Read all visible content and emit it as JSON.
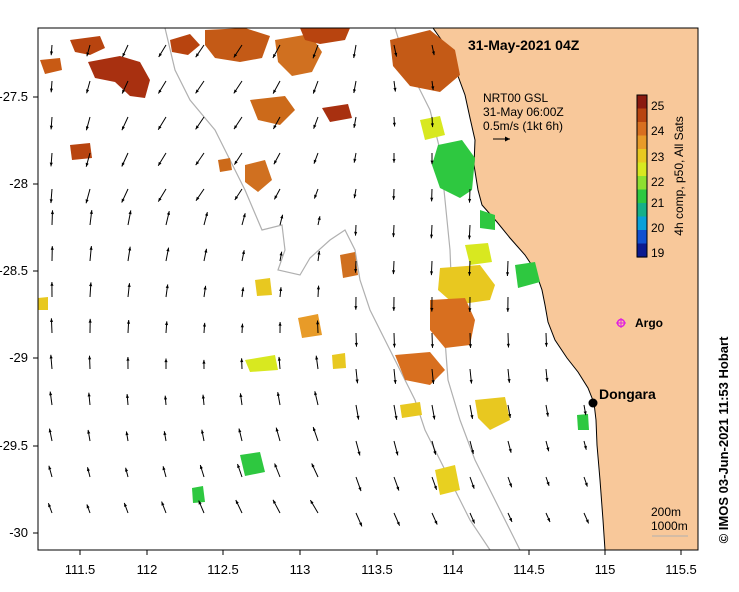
{
  "map": {
    "title": "31-May-2021 04Z",
    "current_legend": {
      "line1": "NRT00 GSL",
      "line2": "31-May 06:00Z",
      "line3": "0.5m/s (1kt 6h)"
    },
    "colorbar": {
      "label": "4h comp, p50, All Sats",
      "ticks": [
        "25",
        "24",
        "23",
        "22",
        "21",
        "20",
        "19"
      ],
      "colors": [
        "#8b1a0f",
        "#b8440f",
        "#d86f1f",
        "#e89b28",
        "#e8c820",
        "#d8e820",
        "#8ee030",
        "#2ec840",
        "#16b088",
        "#0aa0d8",
        "#1050d0",
        "#0a1a90"
      ]
    },
    "x_ticks": [
      "111.5",
      "112",
      "112.5",
      "113",
      "113.5",
      "114",
      "114.5",
      "115",
      "115.5"
    ],
    "y_ticks": [
      "-27.5",
      "-28",
      "-28.5",
      "-29",
      "-29.5",
      "-30"
    ],
    "places": {
      "dongara": "Dongara",
      "argo": "Argo"
    },
    "isobaths": {
      "shallow": "200m",
      "deep": "1000m"
    },
    "credit": "© IMOS 03-Jun-2021 11:53 Hobart",
    "colors": {
      "land": "#f8c89a",
      "sea": "#ffffff",
      "argo": "#e020e0",
      "contour": "#b0b0b0"
    }
  }
}
